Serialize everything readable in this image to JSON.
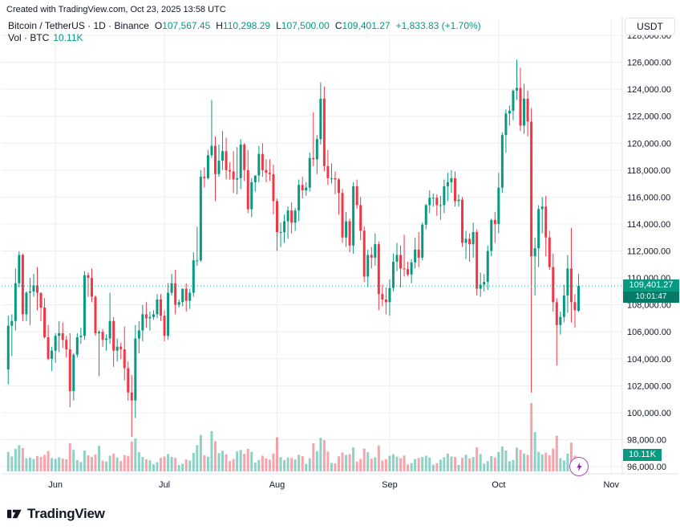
{
  "attribution": "Created with TradingView.com, Oct 23, 2025 13:58 UTC",
  "legend": {
    "title": "Bitcoin / TetherUS · 1D · Binance",
    "o_label": "O",
    "o": "107,567.45",
    "h_label": "H",
    "h": "110,298.29",
    "l_label": "L",
    "l": "107,500.00",
    "c_label": "C",
    "c": "109,401.27",
    "change": "+1,833.83 (+1.70%)",
    "vol_label": "Vol · BTC",
    "vol": "10.11K"
  },
  "currency_button": "USDT",
  "price_badge": {
    "price": "109,401.27",
    "countdown": "10:01:47"
  },
  "volume_badge": "10.11K",
  "footer_logo": "TradingView",
  "colors": {
    "up": "#089981",
    "down": "#f23645",
    "vol_up": "rgba(8,153,129,0.45)",
    "vol_down": "rgba(242,54,69,0.45)",
    "grid": "#eceff2",
    "axis_text": "#131722",
    "separator": "#e0e3eb",
    "accent_purple": "#ab47bc"
  },
  "chart_data": {
    "type": "candlestick",
    "title": "Bitcoin / TetherUS · 1D · Binance",
    "symbol": "BTCUSDT",
    "exchange": "Binance",
    "interval": "1D",
    "start_date": "2025-05-19",
    "volume_unit": "K BTC",
    "current_price": 109401.27,
    "current_volume": 10.11,
    "price_axis": {
      "min": 96000,
      "max": 128000,
      "step": 2000
    },
    "price_ticks": [
      "128,000.00",
      "126,000.00",
      "124,000.00",
      "122,000.00",
      "120,000.00",
      "118,000.00",
      "116,000.00",
      "114,000.00",
      "112,000.00",
      "110,000.00",
      "108,000.00",
      "106,000.00",
      "104,000.00",
      "102,000.00",
      "100,000.00",
      "98,000.00",
      "96,000.00"
    ],
    "months": [
      {
        "label": "Jun",
        "index": 13
      },
      {
        "label": "Jul",
        "index": 43
      },
      {
        "label": "Aug",
        "index": 74
      },
      {
        "label": "Sep",
        "index": 105
      },
      {
        "label": "Oct",
        "index": 135
      },
      {
        "label": "Nov",
        "index": 166
      }
    ],
    "total_slots": 166,
    "candles": [
      [
        103200,
        107200,
        102100,
        106450,
        18.5
      ],
      [
        106450,
        107300,
        104200,
        106800,
        14.2
      ],
      [
        106800,
        110700,
        106100,
        109600,
        21.3
      ],
      [
        109600,
        111980,
        109300,
        111700,
        24.8
      ],
      [
        111700,
        111800,
        106800,
        107300,
        22.1
      ],
      [
        107300,
        109000,
        106800,
        108900,
        12.4
      ],
      [
        108900,
        110000,
        106500,
        109000,
        13.1
      ],
      [
        109000,
        110300,
        108600,
        109450,
        11.8
      ],
      [
        109450,
        110800,
        107600,
        108900,
        14.6
      ],
      [
        108900,
        108900,
        106800,
        107800,
        13.9
      ],
      [
        107800,
        108500,
        105500,
        105600,
        15.7
      ],
      [
        105600,
        106500,
        103900,
        104000,
        19.3
      ],
      [
        104000,
        104900,
        103100,
        104600,
        12.7
      ],
      [
        104600,
        105900,
        103700,
        105700,
        11.9
      ],
      [
        105700,
        106800,
        104500,
        105900,
        13.4
      ],
      [
        105900,
        106700,
        104800,
        105400,
        12.2
      ],
      [
        105400,
        105700,
        104100,
        104700,
        11.5
      ],
      [
        104700,
        105900,
        100400,
        101600,
        26.8
      ],
      [
        101600,
        104400,
        100900,
        104300,
        20.4
      ],
      [
        104300,
        105900,
        104100,
        105600,
        10.8
      ],
      [
        105600,
        106300,
        105100,
        105700,
        8.9
      ],
      [
        105700,
        110500,
        105400,
        110200,
        19.8
      ],
      [
        110200,
        110400,
        108600,
        110000,
        15.2
      ],
      [
        110000,
        110700,
        108200,
        108600,
        13.6
      ],
      [
        108600,
        108700,
        105700,
        105900,
        16.1
      ],
      [
        105900,
        106100,
        102700,
        106000,
        24.3
      ],
      [
        106000,
        106200,
        104900,
        105400,
        10.2
      ],
      [
        105400,
        105800,
        104600,
        105500,
        9.4
      ],
      [
        105500,
        108900,
        105100,
        106800,
        14.9
      ],
      [
        106800,
        107100,
        103400,
        104600,
        16.8
      ],
      [
        104600,
        105500,
        103800,
        104900,
        13.2
      ],
      [
        104900,
        105200,
        104000,
        104700,
        9.8
      ],
      [
        104700,
        106400,
        102400,
        103300,
        15.4
      ],
      [
        103300,
        103800,
        100900,
        101500,
        14.7
      ],
      [
        101500,
        102800,
        98200,
        100900,
        28.4
      ],
      [
        100900,
        106500,
        99600,
        105500,
        31.2
      ],
      [
        105500,
        106800,
        104400,
        106100,
        18.3
      ],
      [
        106100,
        108000,
        105300,
        107300,
        13.8
      ],
      [
        107300,
        108200,
        106300,
        107000,
        11.4
      ],
      [
        107000,
        107500,
        106100,
        107100,
        10.6
      ],
      [
        107100,
        107600,
        106900,
        107300,
        6.8
      ],
      [
        107300,
        108800,
        107000,
        108400,
        8.7
      ],
      [
        108400,
        108800,
        106800,
        107200,
        12.9
      ],
      [
        107200,
        107600,
        105300,
        105700,
        14.1
      ],
      [
        105700,
        109600,
        105400,
        108900,
        16.5
      ],
      [
        108900,
        110300,
        108700,
        109600,
        13.7
      ],
      [
        109600,
        110600,
        107300,
        108000,
        12.8
      ],
      [
        108000,
        108400,
        107800,
        108200,
        5.9
      ],
      [
        108200,
        109200,
        107900,
        109200,
        7.3
      ],
      [
        109200,
        109600,
        107500,
        108300,
        11.2
      ],
      [
        108300,
        109200,
        107700,
        108900,
        10.4
      ],
      [
        108900,
        111900,
        108600,
        111300,
        17.6
      ],
      [
        111300,
        113800,
        110900,
        111300,
        24.9
      ],
      [
        111300,
        118000,
        111200,
        117500,
        34.6
      ],
      [
        117500,
        118200,
        116700,
        117400,
        15.3
      ],
      [
        117400,
        119500,
        117300,
        119100,
        13.9
      ],
      [
        119100,
        123200,
        118900,
        119800,
        38.2
      ],
      [
        119800,
        120500,
        115700,
        117700,
        28.7
      ],
      [
        117700,
        119900,
        117500,
        118700,
        17.4
      ],
      [
        118700,
        120900,
        118000,
        119400,
        19.6
      ],
      [
        119400,
        120400,
        117300,
        118000,
        16.2
      ],
      [
        118000,
        118600,
        117300,
        117900,
        9.7
      ],
      [
        117900,
        119400,
        116300,
        117300,
        11.8
      ],
      [
        117300,
        119700,
        116200,
        117400,
        18.9
      ],
      [
        117400,
        120300,
        116600,
        119900,
        20.3
      ],
      [
        119900,
        120000,
        117200,
        118000,
        16.7
      ],
      [
        118000,
        119500,
        114800,
        115100,
        21.4
      ],
      [
        115100,
        117400,
        114500,
        117100,
        18.6
      ],
      [
        117100,
        117600,
        116400,
        117600,
        8.4
      ],
      [
        117600,
        119800,
        117100,
        119200,
        10.9
      ],
      [
        119200,
        120000,
        117500,
        118000,
        14.8
      ],
      [
        118000,
        118800,
        117100,
        117800,
        12.3
      ],
      [
        117800,
        118800,
        117200,
        117700,
        11.1
      ],
      [
        117700,
        118400,
        114700,
        115700,
        16.9
      ],
      [
        115700,
        115900,
        112000,
        113400,
        32.4
      ],
      [
        113400,
        114100,
        112300,
        113400,
        13.5
      ],
      [
        113400,
        114700,
        112600,
        114200,
        10.7
      ],
      [
        114200,
        115300,
        112900,
        115000,
        13.2
      ],
      [
        115000,
        115600,
        113300,
        114100,
        12.6
      ],
      [
        114100,
        115200,
        113500,
        115000,
        11.3
      ],
      [
        115000,
        117300,
        114200,
        116900,
        15.8
      ],
      [
        116900,
        117500,
        115900,
        116500,
        14.4
      ],
      [
        116500,
        117100,
        116100,
        116700,
        7.2
      ],
      [
        116700,
        119300,
        116400,
        118900,
        12.5
      ],
      [
        118900,
        122300,
        118300,
        118800,
        26.7
      ],
      [
        118800,
        120600,
        117700,
        120300,
        19.2
      ],
      [
        120300,
        124500,
        119900,
        123300,
        31.8
      ],
      [
        123300,
        124200,
        117900,
        118300,
        29.6
      ],
      [
        118300,
        119500,
        116900,
        117400,
        18.7
      ],
      [
        117400,
        118500,
        117000,
        117400,
        8.1
      ],
      [
        117400,
        117900,
        116200,
        117300,
        7.6
      ],
      [
        117300,
        117400,
        114700,
        116300,
        14.3
      ],
      [
        116300,
        116600,
        112600,
        113000,
        17.9
      ],
      [
        113000,
        114900,
        112300,
        114200,
        15.6
      ],
      [
        114200,
        114400,
        111900,
        112400,
        16.4
      ],
      [
        112400,
        117100,
        111800,
        116800,
        22.8
      ],
      [
        116800,
        117300,
        115100,
        115400,
        9.3
      ],
      [
        115400,
        116000,
        112800,
        113500,
        11.7
      ],
      [
        113500,
        113800,
        109700,
        110100,
        21.6
      ],
      [
        110100,
        112100,
        109300,
        111700,
        18.2
      ],
      [
        111700,
        112300,
        110700,
        111500,
        12.1
      ],
      [
        111500,
        113300,
        110900,
        112500,
        13.4
      ],
      [
        112500,
        112700,
        107600,
        108800,
        24.7
      ],
      [
        108800,
        109500,
        107900,
        108400,
        10.3
      ],
      [
        108400,
        109300,
        107300,
        108200,
        11.6
      ],
      [
        108200,
        109900,
        107200,
        109250,
        14.8
      ],
      [
        109250,
        111800,
        109000,
        111200,
        16.3
      ],
      [
        111200,
        112600,
        110500,
        111700,
        13.9
      ],
      [
        111700,
        112400,
        109300,
        110700,
        12.4
      ],
      [
        110700,
        113200,
        110100,
        110650,
        15.1
      ],
      [
        110650,
        111200,
        110100,
        110250,
        6.7
      ],
      [
        110250,
        111400,
        109600,
        111150,
        7.9
      ],
      [
        111150,
        113000,
        110700,
        112100,
        11.8
      ],
      [
        112100,
        113400,
        110800,
        111500,
        12.7
      ],
      [
        111500,
        114100,
        111300,
        113950,
        13.6
      ],
      [
        113950,
        115500,
        113600,
        115400,
        14.9
      ],
      [
        115400,
        116500,
        114800,
        115950,
        13.1
      ],
      [
        115950,
        116250,
        115300,
        115950,
        6.4
      ],
      [
        115950,
        116200,
        114600,
        115400,
        7.8
      ],
      [
        115400,
        116100,
        114300,
        115400,
        11.2
      ],
      [
        115400,
        117300,
        114800,
        116800,
        13.4
      ],
      [
        116800,
        117800,
        115700,
        117100,
        16.8
      ],
      [
        117100,
        118000,
        116300,
        117400,
        14.2
      ],
      [
        117400,
        117900,
        115300,
        115700,
        13.8
      ],
      [
        115700,
        116200,
        115300,
        115800,
        6.1
      ],
      [
        115800,
        116000,
        112300,
        112600,
        12.9
      ],
      [
        112600,
        113500,
        111400,
        112900,
        15.7
      ],
      [
        112900,
        113300,
        111200,
        112500,
        12.3
      ],
      [
        112500,
        114100,
        111500,
        113400,
        13.6
      ],
      [
        113400,
        113600,
        108700,
        109200,
        22.9
      ],
      [
        109200,
        110400,
        108600,
        109500,
        16.4
      ],
      [
        109500,
        110300,
        109000,
        109700,
        7.3
      ],
      [
        109700,
        112400,
        109100,
        112000,
        9.8
      ],
      [
        112000,
        114400,
        111600,
        114300,
        14.6
      ],
      [
        114300,
        114900,
        112600,
        114000,
        13.2
      ],
      [
        114000,
        117800,
        113300,
        116700,
        18.4
      ],
      [
        116700,
        120800,
        116300,
        120600,
        23.7
      ],
      [
        120600,
        122500,
        119300,
        122200,
        19.8
      ],
      [
        122200,
        122800,
        121300,
        122400,
        9.6
      ],
      [
        122400,
        124000,
        121700,
        123900,
        10.8
      ],
      [
        123900,
        126200,
        123200,
        124100,
        22.6
      ],
      [
        124100,
        125600,
        120900,
        121300,
        20.4
      ],
      [
        121300,
        124400,
        120700,
        123300,
        16.9
      ],
      [
        123300,
        123900,
        120500,
        121600,
        15.7
      ],
      [
        121600,
        122600,
        101500,
        111600,
        64.8
      ],
      [
        111600,
        113000,
        108700,
        112200,
        37.3
      ],
      [
        112200,
        115400,
        110800,
        115100,
        18.6
      ],
      [
        115100,
        116000,
        113300,
        115300,
        16.2
      ],
      [
        115300,
        116100,
        111600,
        113000,
        17.8
      ],
      [
        113000,
        113500,
        110600,
        110800,
        15.3
      ],
      [
        110800,
        111800,
        107500,
        108200,
        21.7
      ],
      [
        108200,
        108500,
        103500,
        106500,
        33.9
      ],
      [
        106500,
        107500,
        105800,
        107100,
        12.6
      ],
      [
        107100,
        109500,
        106700,
        108700,
        10.4
      ],
      [
        108700,
        111700,
        107400,
        110700,
        16.8
      ],
      [
        110700,
        113700,
        106700,
        108200,
        27.4
      ],
      [
        108200,
        108800,
        106300,
        107600,
        14.9
      ],
      [
        107567.45,
        110298.29,
        107500,
        109401.27,
        10.11
      ]
    ]
  }
}
